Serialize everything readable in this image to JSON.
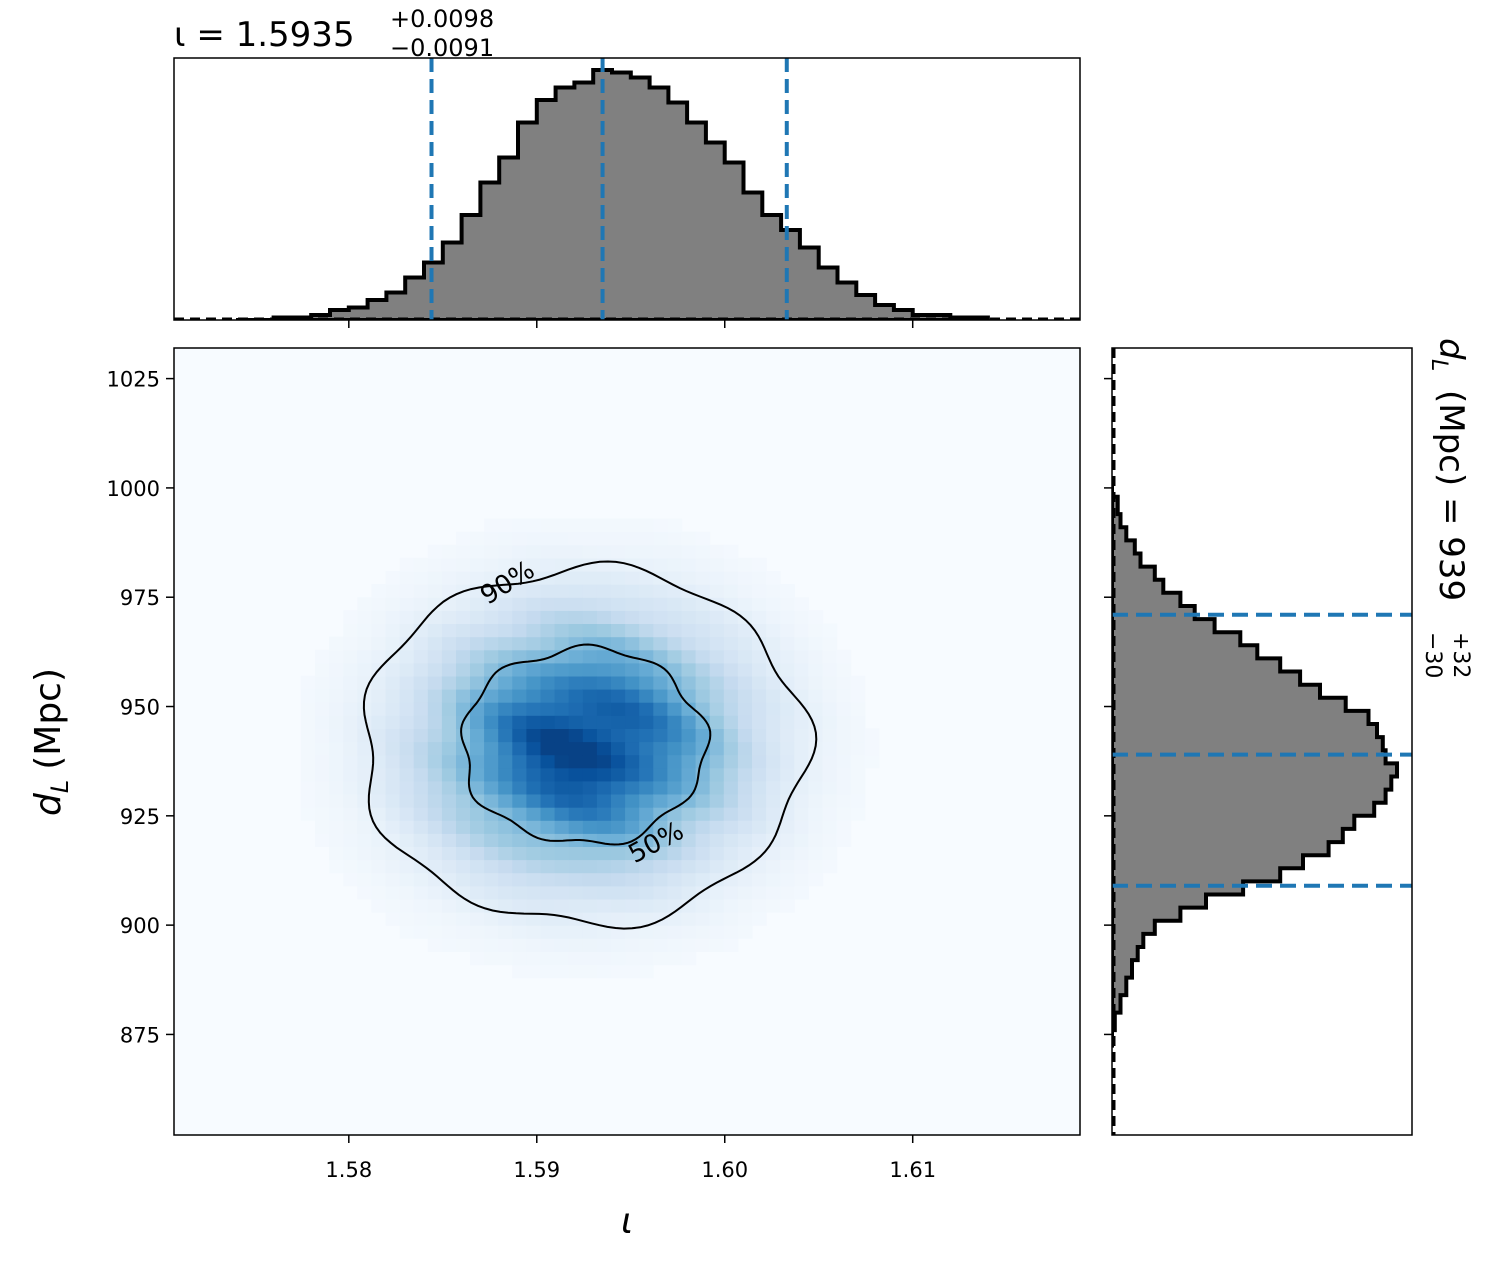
{
  "chart_data": {
    "type": "heatmap",
    "subtype": "corner-plot",
    "colormap": "Blues",
    "x_parameter": {
      "label_symbol": "ι",
      "median": 1.5935,
      "plus": 0.0098,
      "minus": 0.0091,
      "title_lhs": "ι = 1.5935",
      "title_plus": "+0.0098",
      "title_minus": "−0.0091"
    },
    "y_parameter": {
      "label_symbol": "d",
      "label_subscript": "L",
      "label_unit": "(Mpc)",
      "median": 939,
      "plus": 32,
      "minus": 30,
      "title_lhs": "(Mpc) = 939",
      "title_plus": "+32",
      "title_minus": "−30"
    },
    "xlim": [
      1.5707,
      1.6189
    ],
    "ylim": [
      852,
      1032
    ],
    "xticks": [
      1.58,
      1.59,
      1.6,
      1.61
    ],
    "xtick_labels": [
      "1.58",
      "1.59",
      "1.60",
      "1.61"
    ],
    "yticks": [
      875,
      900,
      925,
      950,
      975,
      1000,
      1025
    ],
    "ytick_labels": [
      "875",
      "900",
      "925",
      "950",
      "975",
      "1000",
      "1025"
    ],
    "joint_mean": [
      1.5925,
      941
    ],
    "joint_sigma": [
      0.0055,
      19
    ],
    "contour_labels": [
      "50%",
      "90%"
    ],
    "contour_levels_nsigma": [
      1.1774,
      2.146
    ],
    "x_quantile_lines": [
      1.5844,
      1.5935,
      1.6033
    ],
    "y_quantile_lines": [
      909,
      939,
      971
    ],
    "x_marginal": {
      "bin_edges": [
        1.574,
        1.576,
        1.578,
        1.579,
        1.58,
        1.581,
        1.582,
        1.583,
        1.584,
        1.585,
        1.586,
        1.587,
        1.588,
        1.589,
        1.59,
        1.591,
        1.592,
        1.593,
        1.594,
        1.595,
        1.596,
        1.597,
        1.598,
        1.599,
        1.6,
        1.601,
        1.602,
        1.603,
        1.604,
        1.605,
        1.606,
        1.607,
        1.608,
        1.609,
        1.61,
        1.612,
        1.614
      ],
      "counts": [
        0.0,
        0.01,
        0.02,
        0.04,
        0.05,
        0.08,
        0.11,
        0.17,
        0.23,
        0.31,
        0.42,
        0.55,
        0.65,
        0.79,
        0.88,
        0.93,
        0.95,
        1.0,
        0.99,
        0.97,
        0.93,
        0.87,
        0.79,
        0.71,
        0.63,
        0.51,
        0.42,
        0.36,
        0.29,
        0.21,
        0.15,
        0.1,
        0.06,
        0.04,
        0.02,
        0.01
      ]
    },
    "y_marginal": {
      "bin_edges": [
        872,
        876,
        880,
        884,
        888,
        892,
        895,
        898,
        901,
        904,
        907,
        910,
        913,
        916,
        919,
        922,
        925,
        928,
        931,
        934,
        937,
        940,
        943,
        946,
        949,
        952,
        955,
        958,
        961,
        964,
        967,
        970,
        973,
        976,
        979,
        982,
        985,
        988,
        991,
        994,
        998,
        1002
      ],
      "counts": [
        0.0,
        0.01,
        0.03,
        0.05,
        0.07,
        0.09,
        0.11,
        0.15,
        0.24,
        0.33,
        0.46,
        0.59,
        0.67,
        0.76,
        0.81,
        0.85,
        0.92,
        0.96,
        0.98,
        1.0,
        0.96,
        0.95,
        0.93,
        0.9,
        0.82,
        0.73,
        0.66,
        0.59,
        0.51,
        0.45,
        0.36,
        0.29,
        0.24,
        0.18,
        0.15,
        0.1,
        0.08,
        0.05,
        0.03,
        0.02,
        0.0
      ]
    }
  }
}
